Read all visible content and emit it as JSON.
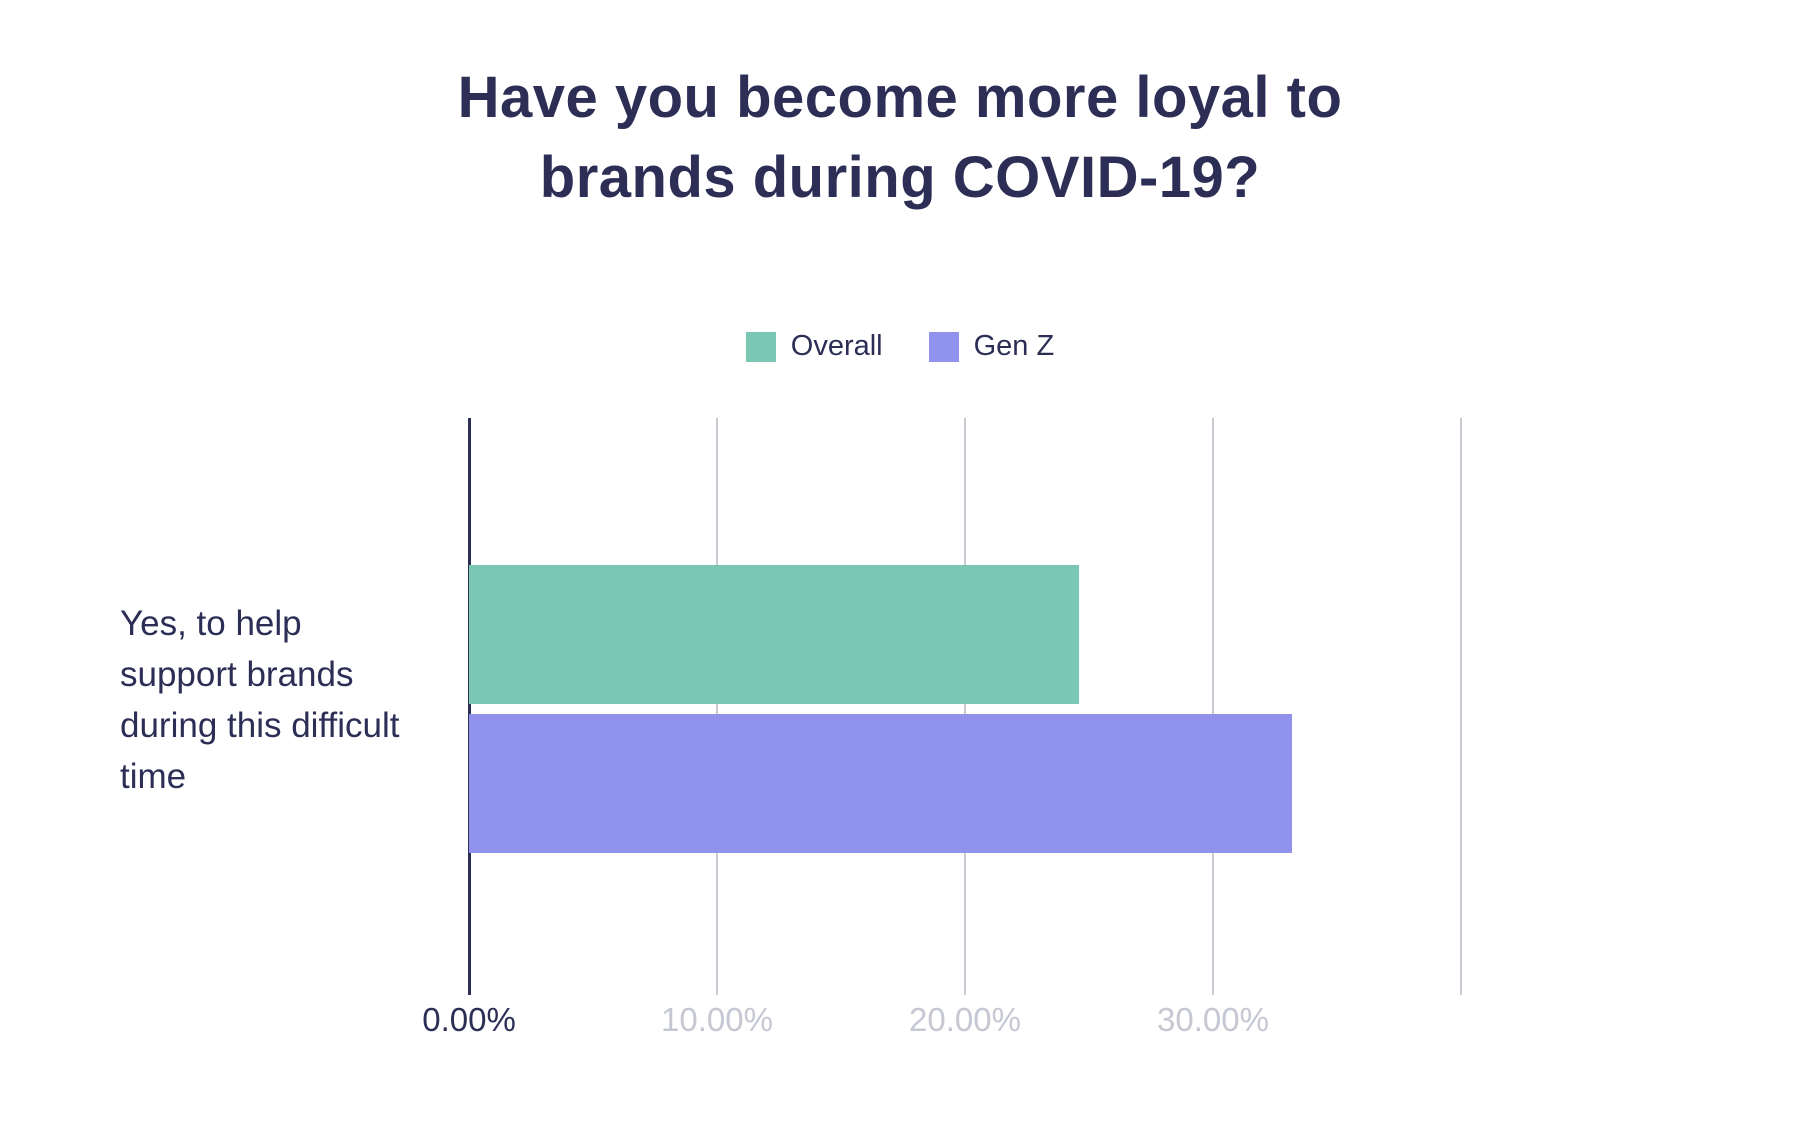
{
  "chart": {
    "title": "Have you become more loyal to brands during COVID-19?"
  },
  "chart_data": {
    "type": "bar",
    "orientation": "horizontal",
    "title": "Have you become more loyal to brands during COVID-19?",
    "categories": [
      "Yes, to help support brands during this difficult time"
    ],
    "series": [
      {
        "name": "Overall",
        "color": "#7AC8B4",
        "values": [
          24.6
        ]
      },
      {
        "name": "Gen Z",
        "color": "#9092EB",
        "values": [
          33.2
        ]
      }
    ],
    "xlabel": "",
    "ylabel": "",
    "xlim": [
      0,
      40
    ],
    "x_ticks": [
      {
        "value": 0,
        "label": "0.00%"
      },
      {
        "value": 10,
        "label": "10.00%"
      },
      {
        "value": 20,
        "label": "20.00%"
      },
      {
        "value": 30,
        "label": "30.00%"
      },
      {
        "value": 40,
        "label": ""
      }
    ],
    "grid": true,
    "legend_position": "top-center"
  },
  "colors": {
    "title_text": "#2C2E56",
    "axis_line": "#2C2E56",
    "gridline": "#C9CAD2",
    "tick_label_muted": "#C5C7D3",
    "tick_label_active": "#2C2E56",
    "background": "#FFFFFF"
  }
}
